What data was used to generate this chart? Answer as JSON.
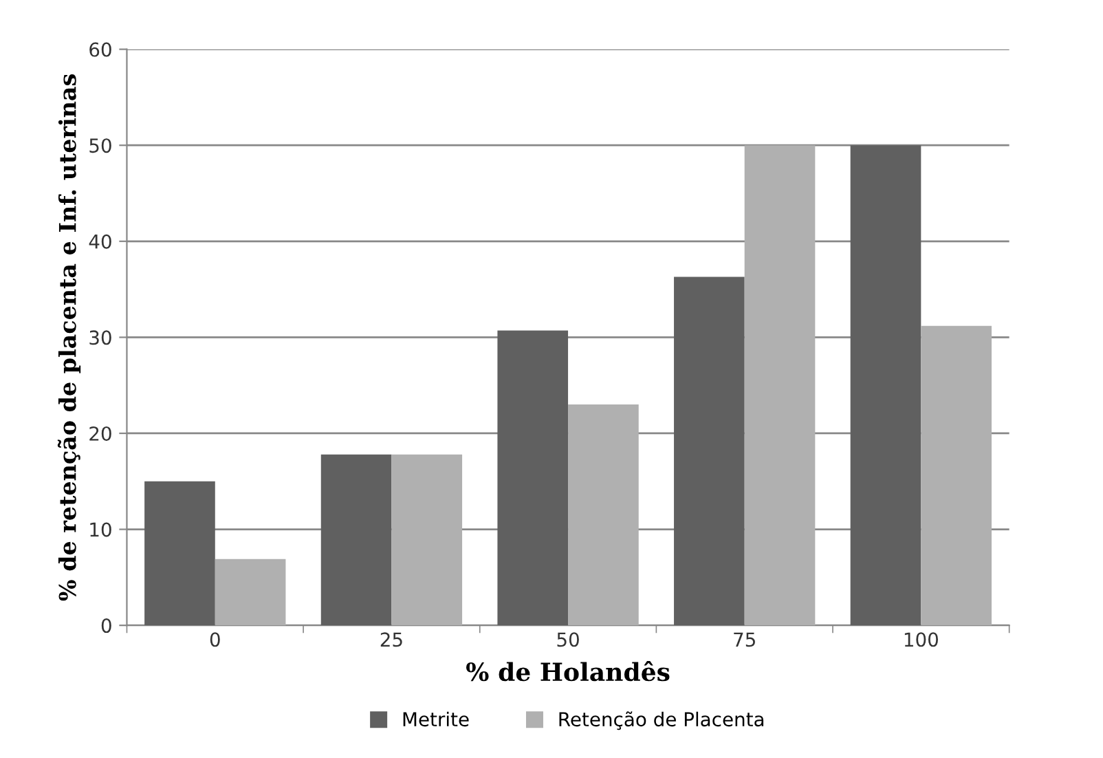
{
  "chart_data": {
    "type": "bar",
    "xlabel": "% de Holandês",
    "ylabel": "% de retenção de placenta e Inf. uterinas",
    "categories": [
      "0",
      "25",
      "50",
      "75",
      "100"
    ],
    "series": [
      {
        "name": "Metrite",
        "color": "#606060",
        "values": [
          15,
          17.8,
          30.7,
          36.3,
          50
        ]
      },
      {
        "name": "Retenção de Placenta",
        "color": "#b0b0b0",
        "values": [
          6.9,
          17.8,
          23,
          50,
          31.2
        ]
      }
    ],
    "ylim": [
      0,
      60
    ],
    "yticks": [
      0,
      10,
      20,
      30,
      40,
      50,
      60
    ],
    "grid": "y",
    "legend": "bottom"
  }
}
